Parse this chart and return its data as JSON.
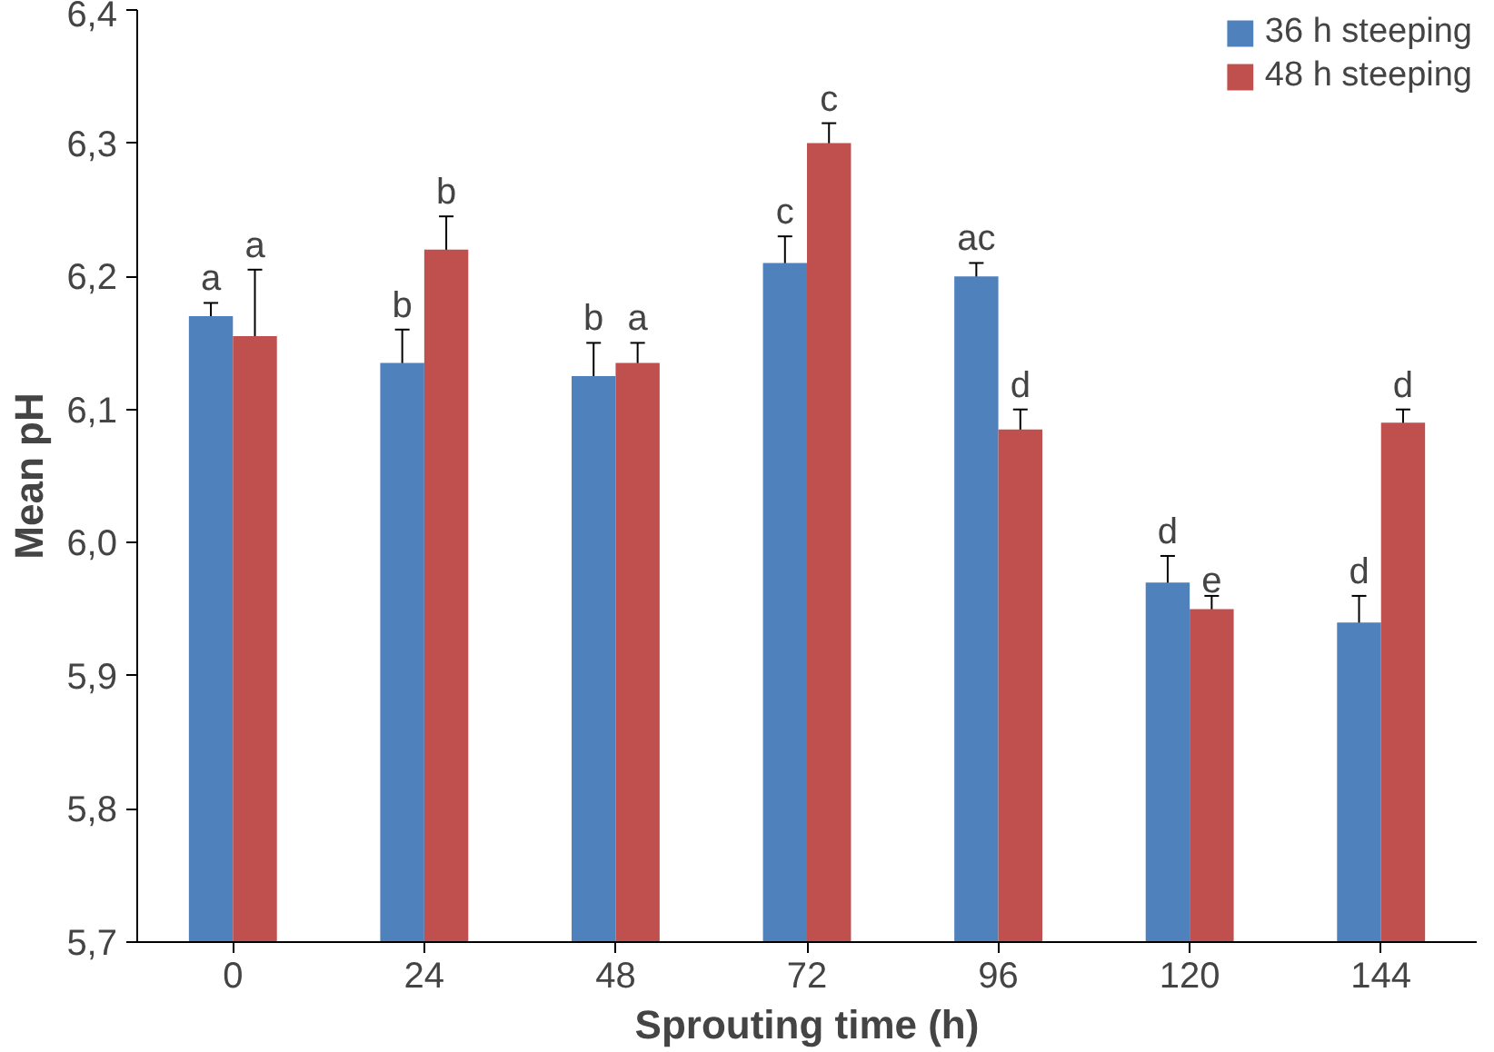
{
  "chart_data": {
    "type": "bar",
    "xlabel": "Sprouting time (h)",
    "ylabel": "Mean pH",
    "categories": [
      "0",
      "24",
      "48",
      "72",
      "96",
      "120",
      "144"
    ],
    "series": [
      {
        "name": "36 h steeping",
        "color": "#4f81bd",
        "values": [
          6.17,
          6.135,
          6.125,
          6.21,
          6.2,
          5.97,
          5.94
        ],
        "errors": [
          0.01,
          0.025,
          0.025,
          0.02,
          0.01,
          0.02,
          0.02
        ],
        "value_labels": [
          "a",
          "b",
          "b",
          "c",
          "ac",
          "d",
          "d"
        ]
      },
      {
        "name": "48 h steeping",
        "color": "#c0504d",
        "values": [
          6.155,
          6.22,
          6.135,
          6.3,
          6.085,
          5.95,
          6.09
        ],
        "errors": [
          0.05,
          0.025,
          0.015,
          0.015,
          0.015,
          0.01,
          0.01
        ],
        "value_labels": [
          "a",
          "b",
          "a",
          "c",
          "d",
          "e",
          "d"
        ]
      }
    ],
    "ylim": [
      5.7,
      6.4
    ],
    "yticks": [
      {
        "value": 5.7,
        "label": "5,7"
      },
      {
        "value": 5.8,
        "label": "5,8"
      },
      {
        "value": 5.9,
        "label": "5,9"
      },
      {
        "value": 6.0,
        "label": "6,0"
      },
      {
        "value": 6.1,
        "label": "6,1"
      },
      {
        "value": 6.2,
        "label": "6,2"
      },
      {
        "value": 6.3,
        "label": "6,3"
      },
      {
        "value": 6.4,
        "label": "6,4"
      }
    ],
    "grid": false,
    "legend": "top right"
  }
}
